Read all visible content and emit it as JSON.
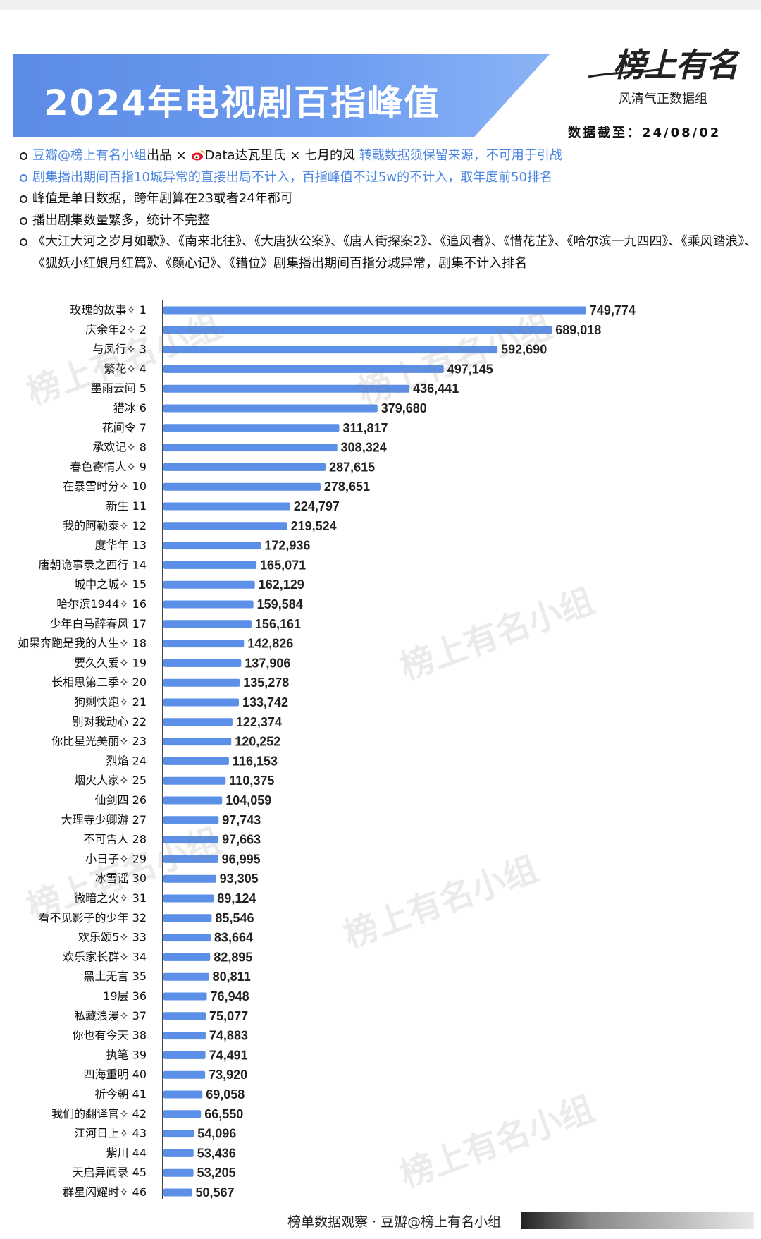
{
  "header": {
    "title": "2024年电视剧百指峰值",
    "brand_name": "榜上有名",
    "brand_sub": "风清气正数据组",
    "cutoff": "数据截至：24/08/02"
  },
  "notes": {
    "line1_a": "豆瓣@榜上有名小组",
    "line1_b": "出品 ×",
    "line1_c": "Data达瓦里氏 × 七月的风",
    "line1_d": "转載数据须保留来源，不可用于引战",
    "line2": "剧集播出期间百指10城异常的直接出局不计入，百指峰值不过5w的不计入，取年度前50排名",
    "line3": "峰值是单日数据，跨年剧算在23或者24年都可",
    "line4": "播出剧集数量繁多，统计不完整",
    "line5": "《大江大河之岁月如歌》、《南来北往》、《大唐狄公案》、《唐人街探案2》、《追风者》、《惜花芷》、《哈尔滨一九四四》、《乘风踏浪》、《狐妖小红娘月红篇》、《颜心记》、《错位》剧集播出期间百指分城异常，剧集不计入排名"
  },
  "watermark": "榜上有名小组",
  "footer": "榜单数据观察 · 豆瓣@榜上有名小组",
  "colors": {
    "bar": "#5c8fe8",
    "banner": "#6d9cf0",
    "note_blue": "#4a86e0"
  },
  "chart_data": {
    "type": "bar",
    "orientation": "horizontal",
    "categories": [
      "玫瑰的故事✧ 1",
      "庆余年2✧ 2",
      "与凤行✧ 3",
      "繁花✧ 4",
      "墨雨云间 5",
      "猎冰 6",
      "花间令 7",
      "承欢记✧ 8",
      "春色寄情人✧ 9",
      "在暴雪时分✧ 10",
      "新生 11",
      "我的阿勒泰✧ 12",
      "度华年 13",
      "唐朝诡事录之西行 14",
      "城中之城✧ 15",
      "哈尔滨1944✧ 16",
      "少年白马醉春风 17",
      "如果奔跑是我的人生✧ 18",
      "要久久爱✧ 19",
      "长相思第二季✧ 20",
      "狗剩快跑✧ 21",
      "别对我动心 22",
      "你比星光美丽✧ 23",
      "烈焰 24",
      "烟火人家✧ 25",
      "仙剑四 26",
      "大理寺少卿游 27",
      "不可告人 28",
      "小日子✧ 29",
      "冰雪谣 30",
      "微暗之火✧ 31",
      "看不见影子的少年 32",
      "欢乐颂5✧ 33",
      "欢乐家长群✧ 34",
      "黑土无言 35",
      "19层 36",
      "私藏浪漫✧ 37",
      "你也有今天 38",
      "执笔 39",
      "四海重明 40",
      "祈今朝 41",
      "我们的翻译官✧ 42",
      "江河日上✧ 43",
      "紫川 44",
      "天启异闻录 45",
      "群星闪耀时✧ 46"
    ],
    "values": [
      749774,
      689018,
      592690,
      497145,
      436441,
      379680,
      311817,
      308324,
      287615,
      278651,
      224797,
      219524,
      172936,
      165071,
      162129,
      159584,
      156161,
      142826,
      137906,
      135278,
      133742,
      122374,
      120252,
      116153,
      110375,
      104059,
      97743,
      97663,
      96995,
      93305,
      89124,
      85546,
      83664,
      82895,
      80811,
      76948,
      75077,
      74883,
      74491,
      73920,
      69058,
      66550,
      54096,
      53436,
      53205,
      50567
    ],
    "value_labels": [
      "749,774",
      "689,018",
      "592,690",
      "497,145",
      "436,441",
      "379,680",
      "311,817",
      "308,324",
      "287,615",
      "278,651",
      "224,797",
      "219,524",
      "172,936",
      "165,071",
      "162,129",
      "159,584",
      "156,161",
      "142,826",
      "137,906",
      "135,278",
      "133,742",
      "122,374",
      "120,252",
      "116,153",
      "110,375",
      "104,059",
      "97,743",
      "97,663",
      "96,995",
      "93,305",
      "89,124",
      "85,546",
      "83,664",
      "82,895",
      "80,811",
      "76,948",
      "75,077",
      "74,883",
      "74,491",
      "73,920",
      "69,058",
      "66,550",
      "54,096",
      "53,436",
      "53,205",
      "50,567"
    ],
    "xlim": [
      0,
      800000
    ],
    "grid": false
  }
}
